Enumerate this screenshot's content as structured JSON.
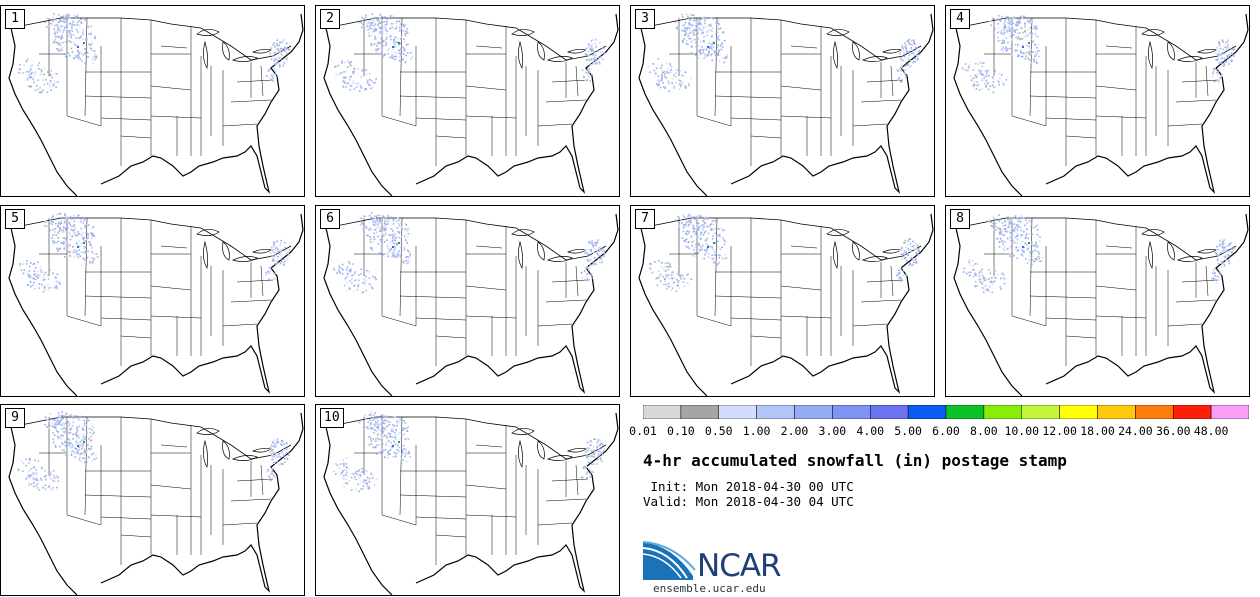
{
  "members": [
    {
      "label": "1",
      "seed": 11
    },
    {
      "label": "2",
      "seed": 23
    },
    {
      "label": "3",
      "seed": 37
    },
    {
      "label": "4",
      "seed": 41
    },
    {
      "label": "5",
      "seed": 53
    },
    {
      "label": "6",
      "seed": 67
    },
    {
      "label": "7",
      "seed": 71
    },
    {
      "label": "8",
      "seed": 83
    },
    {
      "label": "9",
      "seed": 97
    },
    {
      "label": "10",
      "seed": 101
    }
  ],
  "colorbar": {
    "colors": [
      "#d8d8d8",
      "#a5a5a5",
      "#d3ddfb",
      "#b4c6f8",
      "#93aef5",
      "#7d94f2",
      "#6a74ee",
      "#0e5cf6",
      "#0cc02a",
      "#89ed08",
      "#c4f53a",
      "#ffff00",
      "#ffc80a",
      "#ff7c0b",
      "#ff1e08",
      "#f99ef6"
    ],
    "ticks": [
      "0.01",
      "0.10",
      "0.50",
      "1.00",
      "2.00",
      "3.00",
      "4.00",
      "5.00",
      "6.00",
      "8.00",
      "10.00",
      "12.00",
      "18.00",
      "24.00",
      "36.00",
      "48.00"
    ]
  },
  "title": "4-hr accumulated snowfall (in) postage stamp",
  "init_text": " Init: Mon 2018-04-30 00 UTC",
  "valid_text": "Valid: Mon 2018-04-30 04 UTC",
  "logo_text": "NCAR",
  "site_text": "ensemble.ucar.edu"
}
